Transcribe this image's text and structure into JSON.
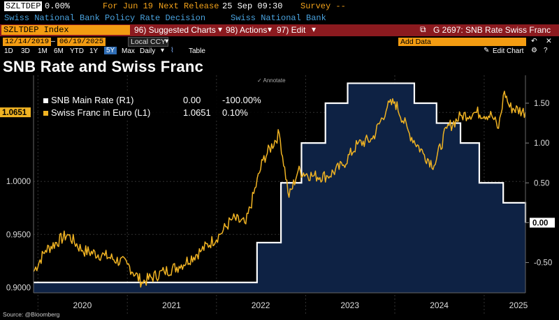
{
  "header": {
    "ticker": "SZLTDEP",
    "value": "0.00%",
    "for_date": "For Jun 19",
    "next_release_label": "Next Release",
    "next_release_value": "25 Sep 09:30",
    "survey_label": "Survey --",
    "event_name": "Swiss National Bank Policy Rate Decision",
    "source_name": "Swiss National Bank"
  },
  "toolbar": {
    "index_label": "SZLTDEP Index",
    "suggested_charts": "96) Suggested Charts",
    "actions": "98) Actions",
    "edit": "97) Edit",
    "chart_ref": "G 2697: SNB Rate Swiss Franc"
  },
  "range": {
    "start_date": "12/14/2019",
    "end_date": "06/19/2025",
    "currency": "Local CCY",
    "add_data": "Add Data",
    "edit_chart": "Edit Chart"
  },
  "periods": {
    "items": [
      "1D",
      "3D",
      "1M",
      "6M",
      "YTD",
      "1Y",
      "5Y",
      "Max"
    ],
    "active": "5Y",
    "frequency": "Daily",
    "table": "Table"
  },
  "annotate_label": "Annotate",
  "source_text": "Source: @Bloomberg",
  "colors": {
    "rate_line": "#ffffff",
    "rate_fill": "#0e2244",
    "chf_line": "#f0b323",
    "background": "#000000"
  },
  "chart_data": {
    "type": "line",
    "title": "SNB Rate and Swiss Franc",
    "legend": [
      {
        "name": "SNB Main Rate (R1)",
        "last": "0.00",
        "change": "-100.00%"
      },
      {
        "name": "Swiss Franc in Euro (L1)",
        "last": "1.0651",
        "change": "0.10%"
      }
    ],
    "legend_position": "top-left",
    "grid": true,
    "x_labels": [
      "2020",
      "2021",
      "2022",
      "2023",
      "2024",
      "2025"
    ],
    "left_axis": {
      "ticks": [
        "0.9000",
        "0.9500",
        "1.0000",
        "1.0650"
      ],
      "ylim": [
        0.895,
        1.1
      ],
      "last_value_label": "1.0651"
    },
    "right_axis": {
      "ticks": [
        "-0.50",
        "0.00",
        "0.50",
        "1.00",
        "1.50"
      ],
      "ylim": [
        -0.88,
        1.85
      ],
      "last_value_label": "0.00"
    },
    "series": [
      {
        "name": "SNB Main Rate (R1)",
        "axis": "right",
        "step": true,
        "points": [
          [
            "2019-12-14",
            -0.75
          ],
          [
            "2022-06-16",
            -0.25
          ],
          [
            "2022-09-22",
            0.5
          ],
          [
            "2022-12-15",
            1.0
          ],
          [
            "2023-03-23",
            1.5
          ],
          [
            "2023-06-22",
            1.75
          ],
          [
            "2024-03-21",
            1.5
          ],
          [
            "2024-06-20",
            1.25
          ],
          [
            "2024-09-26",
            1.0
          ],
          [
            "2024-12-12",
            0.5
          ],
          [
            "2025-03-20",
            0.25
          ],
          [
            "2025-06-19",
            0.0
          ]
        ]
      },
      {
        "name": "Swiss Franc in Euro (L1)",
        "axis": "left",
        "points": [
          [
            "2019-12-14",
            0.915
          ],
          [
            "2020-02-01",
            0.935
          ],
          [
            "2020-05-01",
            0.95
          ],
          [
            "2020-07-01",
            0.935
          ],
          [
            "2020-10-01",
            0.93
          ],
          [
            "2021-01-01",
            0.922
          ],
          [
            "2021-03-01",
            0.905
          ],
          [
            "2021-06-01",
            0.915
          ],
          [
            "2021-08-01",
            0.92
          ],
          [
            "2021-11-01",
            0.935
          ],
          [
            "2022-01-15",
            0.95
          ],
          [
            "2022-03-08",
            0.965
          ],
          [
            "2022-05-01",
            0.96
          ],
          [
            "2022-07-10",
            1.02
          ],
          [
            "2022-09-15",
            1.045
          ],
          [
            "2022-10-25",
            0.985
          ],
          [
            "2022-12-01",
            1.01
          ],
          [
            "2023-02-01",
            1.005
          ],
          [
            "2023-04-01",
            1.005
          ],
          [
            "2023-06-01",
            1.015
          ],
          [
            "2023-08-01",
            1.035
          ],
          [
            "2023-10-01",
            1.04
          ],
          [
            "2023-12-01",
            1.07
          ],
          [
            "2024-01-01",
            1.075
          ],
          [
            "2024-03-01",
            1.045
          ],
          [
            "2024-05-01",
            1.025
          ],
          [
            "2024-06-10",
            1.015
          ],
          [
            "2024-08-01",
            1.05
          ],
          [
            "2024-10-01",
            1.062
          ],
          [
            "2024-12-01",
            1.065
          ],
          [
            "2025-02-01",
            1.062
          ],
          [
            "2025-03-01",
            1.05
          ],
          [
            "2025-03-25",
            1.085
          ],
          [
            "2025-04-15",
            1.07
          ],
          [
            "2025-06-19",
            1.0651
          ]
        ]
      }
    ]
  }
}
